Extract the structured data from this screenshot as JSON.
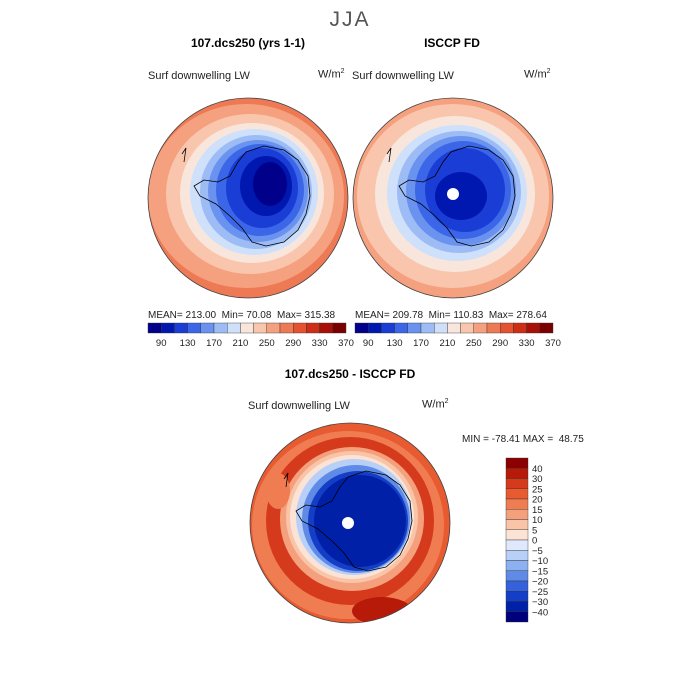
{
  "title": "JJA",
  "panels": [
    {
      "title": "107.dcs250 (yrs 1-1)",
      "variable": "Surf downwelling LW",
      "units": "W/m",
      "units_sup": "2",
      "stats": {
        "mean_label": "MEAN=",
        "mean": "213.00",
        "min_label": "Min=",
        "min": "70.08",
        "max_label": "Max=",
        "max": "315.38"
      }
    },
    {
      "title": "ISCCP FD",
      "variable": "Surf downwelling LW",
      "units": "W/m",
      "units_sup": "2",
      "stats": {
        "mean_label": "MEAN=",
        "mean": "209.78",
        "min_label": "Min=",
        "min": "110.83",
        "max_label": "Max=",
        "max": "278.64"
      }
    }
  ],
  "colorbar_top": {
    "labels": [
      "90",
      "130",
      "170",
      "210",
      "250",
      "290",
      "330",
      "370"
    ],
    "colors": [
      "#00008b",
      "#0018b0",
      "#1a3dd6",
      "#3b66e8",
      "#6a92ef",
      "#9dbcf5",
      "#cfe0fa",
      "#f8e6dc",
      "#f9c6ad",
      "#f5a07e",
      "#ee7a55",
      "#e5522f",
      "#cf2e16",
      "#a80f07",
      "#7a0000"
    ]
  },
  "diff_panel": {
    "title": "107.dcs250 - ISCCP FD",
    "variable": "Surf downwelling LW",
    "units": "W/m",
    "units_sup": "2",
    "stats": {
      "min_label": "MIN =",
      "min": "-78.41",
      "max_label": "MAX =",
      "max": "48.75"
    }
  },
  "colorbar_diff": {
    "labels": [
      "40",
      "30",
      "25",
      "20",
      "15",
      "10",
      "5",
      "0",
      "−5",
      "−10",
      "−15",
      "−20",
      "−25",
      "−30",
      "−40"
    ],
    "colors": [
      "#8b0000",
      "#b81a0a",
      "#d63a1c",
      "#e85a30",
      "#f07c52",
      "#f5a07c",
      "#f9c4a8",
      "#fbe3d5",
      "#dfe9fb",
      "#b8d0f7",
      "#8cb0f0",
      "#5f8be6",
      "#3562dc",
      "#153ec6",
      "#0020a8",
      "#00007a"
    ]
  }
}
